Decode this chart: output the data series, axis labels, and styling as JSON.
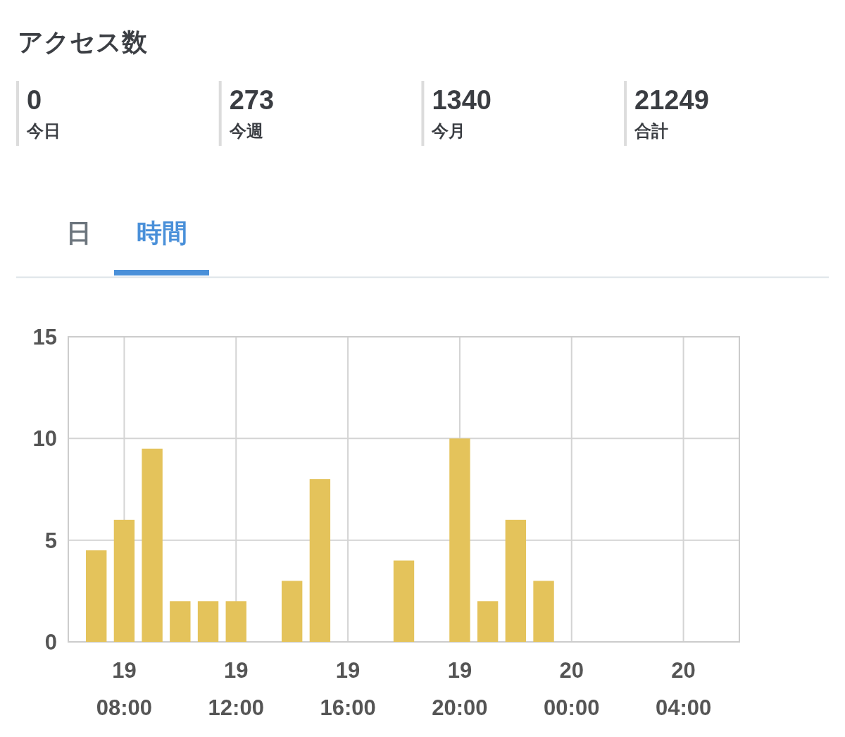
{
  "chart_data": [
    {
      "type": "other",
      "title": "アクセス数",
      "annotations": [
        "0\n今日",
        "273\n今週",
        "1340\n今月",
        "21249\n合計"
      ]
    },
    {
      "type": "bar",
      "annotations": [
        "日",
        "時間"
      ],
      "categories": [
        null,
        null,
        "19\n08:00",
        null,
        null,
        null,
        "19\n12:00",
        null,
        null,
        null,
        "19\n16:00",
        null,
        null,
        null,
        "19\n20:00",
        null,
        null,
        null,
        "20\n00:00",
        null,
        null,
        null,
        "20\n04:00",
        null,
        null
      ],
      "values": [
        null,
        4.5,
        6,
        9.5,
        2,
        2,
        2,
        null,
        3,
        8,
        null,
        null,
        4,
        null,
        10,
        2,
        6,
        3,
        null,
        null,
        null,
        null,
        null,
        null,
        null
      ],
      "color": "#e4c35b",
      "ylim": [
        0,
        15
      ],
      "yticks": [
        0,
        5,
        10,
        15
      ],
      "grid": true
    }
  ]
}
